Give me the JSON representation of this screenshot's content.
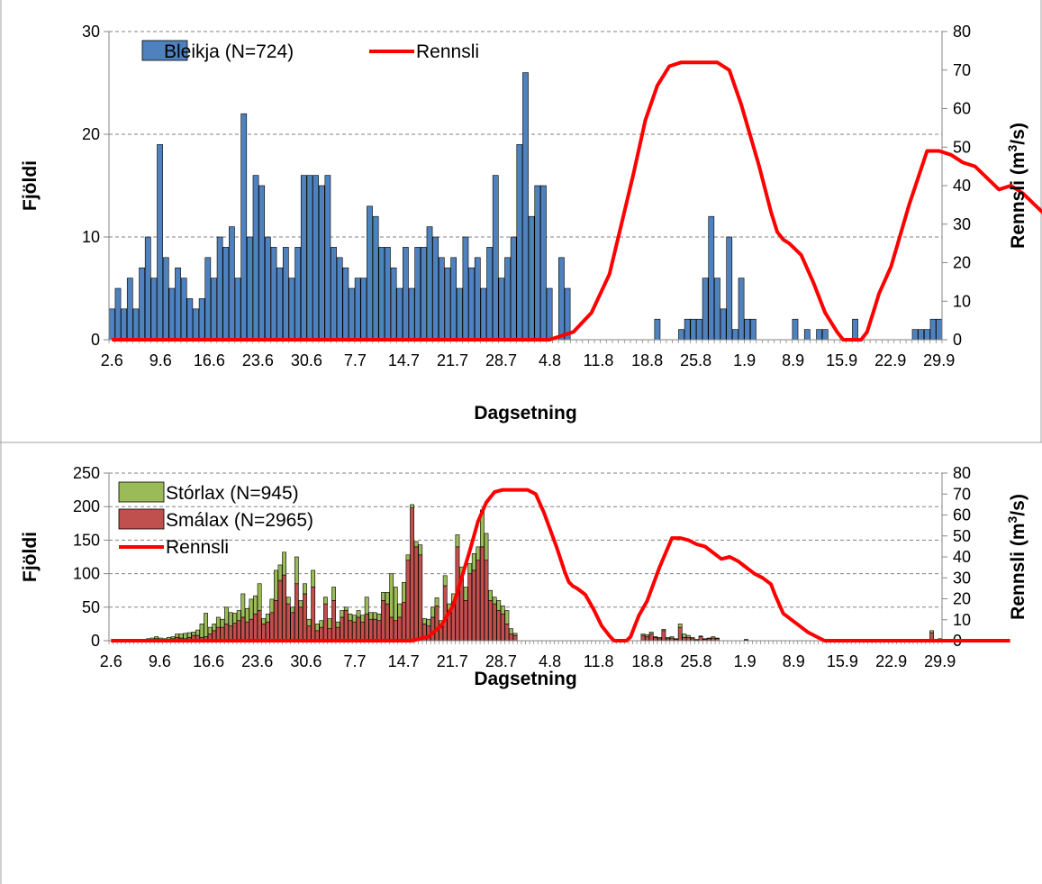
{
  "chart_data": [
    {
      "type": "bar",
      "xlabel": "Dagsetning",
      "ylabel": "Fjöldi",
      "y2label": "Rennsli (m",
      "y2label_sup": "3",
      "y2label_end": "/s)",
      "ylim": [
        0,
        30
      ],
      "y2lim": [
        0,
        80
      ],
      "yticks": [
        0,
        10,
        20,
        30
      ],
      "y2ticks": [
        0,
        10,
        20,
        30,
        40,
        50,
        60,
        70,
        80
      ],
      "grid": true,
      "legend": "top-left",
      "x_tick_labels": [
        "2.6",
        "9.6",
        "16.6",
        "23.6",
        "30.6",
        "7.7",
        "14.7",
        "21.7",
        "28.7",
        "4.8",
        "11.8",
        "18.8",
        "25.8",
        "1.9",
        "8.9",
        "15.9",
        "22.9",
        "29.9"
      ],
      "series": [
        {
          "name": "Bleikja (N=724)",
          "kind": "bar",
          "color": "#4f81bd",
          "values": [
            3,
            5,
            3,
            6,
            3,
            7,
            10,
            6,
            19,
            8,
            5,
            7,
            6,
            4,
            3,
            4,
            8,
            6,
            10,
            9,
            11,
            6,
            22,
            10,
            16,
            15,
            10,
            9,
            7,
            9,
            6,
            9,
            16,
            16,
            16,
            15,
            16,
            9,
            8,
            7,
            5,
            6,
            6,
            13,
            12,
            9,
            9,
            7,
            5,
            9,
            5,
            9,
            9,
            11,
            10,
            8,
            7,
            8,
            5,
            10,
            7,
            8,
            5,
            9,
            16,
            6,
            8,
            10,
            19,
            26,
            12,
            15,
            15,
            5,
            0,
            8,
            5,
            0,
            0,
            0,
            0,
            0,
            0,
            0,
            0,
            0,
            0,
            0,
            0,
            0,
            0,
            2,
            0,
            0,
            0,
            1,
            2,
            2,
            2,
            6,
            12,
            6,
            3,
            10,
            1,
            6,
            2,
            2,
            0,
            0,
            0,
            0,
            0,
            0,
            2,
            0,
            1,
            0,
            1,
            1,
            0,
            0,
            0,
            0,
            2,
            0,
            0,
            0,
            0,
            0,
            0,
            0,
            0,
            0,
            1,
            1,
            1,
            2,
            2
          ]
        },
        {
          "name": "Rennsli",
          "kind": "line",
          "color": "#ff0000",
          "axis": "right",
          "x": [
            0,
            73,
            77,
            80,
            83,
            85,
            87,
            89,
            91,
            93,
            95,
            97,
            99,
            101,
            103,
            105,
            108,
            110,
            111,
            112,
            113,
            115,
            117,
            119,
            121,
            122,
            123,
            124,
            125,
            126,
            127,
            128,
            130,
            133,
            136,
            138,
            140,
            142,
            144,
            146,
            148,
            150,
            152,
            154,
            156,
            158,
            160,
            161,
            163,
            165,
            167,
            169,
            171,
            173,
            175,
            177,
            179,
            181,
            183,
            185,
            187,
            189,
            191,
            193,
            195,
            200,
            205,
            210,
            215,
            218
          ],
          "values": [
            0,
            0,
            2,
            7,
            17,
            30,
            43,
            57,
            66,
            71,
            72,
            72,
            72,
            72,
            70,
            61,
            45,
            33,
            28,
            26,
            25,
            22,
            15,
            7,
            2,
            0,
            0,
            0,
            0,
            2,
            7,
            12,
            19,
            35,
            49,
            49,
            48,
            46,
            45,
            42,
            39,
            40,
            38,
            35,
            32,
            30,
            27,
            22,
            13,
            10,
            7,
            4,
            2,
            0,
            0,
            0,
            0,
            0,
            0,
            0,
            0,
            0,
            0,
            0,
            0,
            0,
            0,
            0,
            0,
            0
          ]
        }
      ]
    },
    {
      "type": "bar",
      "stacked": true,
      "xlabel": "Dagsetning",
      "ylabel": "Fjöldi",
      "y2label": "Rennsli (m",
      "y2label_sup": "3",
      "y2label_end": "/s)",
      "ylim": [
        0,
        250
      ],
      "y2lim": [
        0,
        80
      ],
      "yticks": [
        0,
        50,
        100,
        150,
        200,
        250
      ],
      "y2ticks": [
        0,
        10,
        20,
        30,
        40,
        50,
        60,
        70,
        80
      ],
      "grid": true,
      "legend": "top-left",
      "x_tick_labels": [
        "2.6",
        "9.6",
        "16.6",
        "23.6",
        "30.6",
        "7.7",
        "14.7",
        "21.7",
        "28.7",
        "4.8",
        "11.8",
        "18.8",
        "25.8",
        "1.9",
        "8.9",
        "15.9",
        "22.9",
        "29.9"
      ],
      "series": [
        {
          "name": "Smálax (N=2965)",
          "kind": "bar",
          "color": "#c0504d",
          "values": [
            0,
            0,
            0,
            0,
            0,
            0,
            0,
            0,
            0,
            1,
            2,
            3,
            2,
            1,
            2,
            3,
            5,
            4,
            3,
            5,
            8,
            8,
            5,
            6,
            10,
            15,
            20,
            20,
            25,
            22,
            26,
            30,
            35,
            28,
            32,
            40,
            45,
            25,
            28,
            42,
            60,
            90,
            98,
            55,
            42,
            85,
            50,
            70,
            22,
            80,
            15,
            20,
            55,
            18,
            60,
            20,
            35,
            45,
            30,
            28,
            35,
            28,
            40,
            32,
            32,
            30,
            60,
            55,
            35,
            30,
            35,
            57,
            120,
            198,
            140,
            128,
            25,
            22,
            35,
            52,
            20,
            82,
            45,
            58,
            140,
            90,
            60,
            100,
            105,
            120,
            140,
            120,
            60,
            55,
            45,
            40,
            25,
            10,
            8,
            0,
            0,
            0,
            0,
            0,
            0,
            0,
            0,
            0,
            0,
            0,
            0,
            0,
            0,
            0,
            0,
            0,
            0,
            0,
            0,
            0,
            0,
            0,
            0,
            0,
            0,
            0,
            0,
            0,
            0,
            8,
            6,
            10,
            5,
            3,
            15,
            3,
            4,
            2,
            20,
            5,
            5,
            3,
            1,
            6,
            2,
            3,
            4,
            3,
            0,
            0,
            0,
            0,
            0,
            0,
            1,
            0,
            0,
            0,
            0,
            0,
            0,
            0,
            0,
            0,
            0,
            0,
            0,
            0,
            0,
            0,
            0,
            0,
            0,
            0,
            0,
            0,
            0,
            0,
            0,
            0,
            0,
            0,
            0,
            0,
            0,
            0,
            0,
            0,
            0,
            0,
            0,
            0,
            0,
            0,
            0,
            0,
            0,
            1,
            0,
            12,
            1,
            3
          ]
        },
        {
          "name": "Stórlax (N=945)",
          "kind": "bar",
          "color": "#9bbb59",
          "values": [
            0,
            0,
            0,
            0,
            0,
            0,
            0,
            0,
            0,
            2,
            2,
            3,
            2,
            2,
            3,
            3,
            5,
            6,
            8,
            7,
            5,
            8,
            20,
            35,
            10,
            10,
            15,
            12,
            25,
            20,
            15,
            15,
            35,
            20,
            30,
            27,
            40,
            8,
            12,
            20,
            45,
            23,
            34,
            10,
            8,
            40,
            10,
            15,
            10,
            25,
            10,
            10,
            10,
            15,
            20,
            8,
            10,
            5,
            10,
            10,
            10,
            10,
            25,
            10,
            10,
            10,
            12,
            17,
            65,
            50,
            20,
            30,
            8,
            5,
            8,
            15,
            8,
            10,
            15,
            12,
            10,
            15,
            10,
            12,
            18,
            20,
            20,
            15,
            25,
            20,
            55,
            40,
            15,
            10,
            15,
            12,
            20,
            8,
            3,
            0,
            0,
            0,
            0,
            0,
            0,
            0,
            0,
            0,
            0,
            0,
            0,
            0,
            0,
            0,
            0,
            0,
            0,
            0,
            0,
            0,
            0,
            0,
            0,
            0,
            0,
            0,
            0,
            0,
            0,
            2,
            3,
            3,
            1,
            2,
            2,
            2,
            2,
            1,
            5,
            5,
            3,
            2,
            1,
            1,
            1,
            1,
            2,
            1,
            0,
            0,
            0,
            0,
            0,
            0,
            1,
            0,
            0,
            0,
            0,
            0,
            0,
            0,
            0,
            0,
            0,
            0,
            0,
            0,
            0,
            0,
            0,
            0,
            0,
            0,
            0,
            0,
            0,
            0,
            0,
            0,
            0,
            0,
            0,
            0,
            0,
            0,
            0,
            0,
            0,
            0,
            0,
            0,
            0,
            0,
            0,
            0,
            0,
            1,
            0,
            3,
            1,
            0
          ]
        },
        {
          "name": "Rennsli",
          "kind": "line",
          "color": "#ff0000",
          "axis": "right",
          "x": [
            0,
            73,
            77,
            80,
            83,
            85,
            87,
            89,
            91,
            93,
            95,
            97,
            99,
            101,
            103,
            105,
            108,
            110,
            111,
            112,
            113,
            115,
            117,
            119,
            121,
            122,
            123,
            124,
            125,
            126,
            127,
            128,
            130,
            133,
            136,
            138,
            140,
            142,
            144,
            146,
            148,
            150,
            152,
            154,
            156,
            158,
            160,
            161,
            163,
            165,
            167,
            169,
            171,
            173,
            175,
            177,
            179,
            181,
            183,
            185,
            187,
            189,
            191,
            193,
            195,
            200,
            205,
            210,
            215,
            218
          ],
          "values": [
            0,
            0,
            2,
            7,
            17,
            30,
            43,
            57,
            66,
            71,
            72,
            72,
            72,
            72,
            70,
            61,
            45,
            33,
            28,
            26,
            25,
            22,
            15,
            7,
            2,
            0,
            0,
            0,
            0,
            2,
            7,
            12,
            19,
            35,
            49,
            49,
            48,
            46,
            45,
            42,
            39,
            40,
            38,
            35,
            32,
            30,
            27,
            22,
            13,
            10,
            7,
            4,
            2,
            0,
            0,
            0,
            0,
            0,
            0,
            0,
            0,
            0,
            0,
            0,
            0,
            0,
            0,
            0,
            0,
            0
          ]
        }
      ]
    }
  ]
}
